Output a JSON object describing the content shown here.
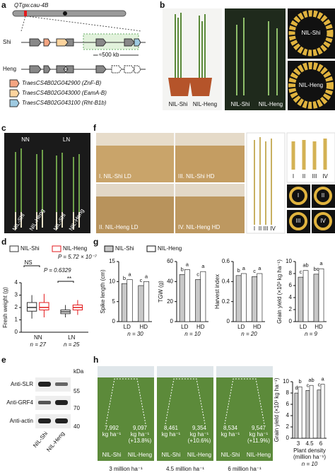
{
  "panel_labels": [
    "a",
    "b",
    "c",
    "d",
    "e",
    "f",
    "g",
    "h"
  ],
  "panels": {
    "a": {
      "locus": "QTgw.cau-4B",
      "rows": [
        "Shi",
        "Heng"
      ],
      "distance": "≈500 kb",
      "genes": [
        "TraesCS4B02G042900 (ZnF-B)",
        "TraesCS4B02G043000 (EamA-B)",
        "TraesCS4B02G043100 (Rht-B1b)"
      ]
    },
    "b": {
      "plant_labels": [
        "NIL-Shi",
        "NIL-Heng"
      ],
      "spike_labels": [
        "NIL-Shi",
        "NIL-Heng"
      ],
      "grain_labels": [
        "NIL-Shi",
        "NIL-Heng"
      ]
    },
    "c": {
      "conditions": [
        "NN",
        "LN"
      ],
      "plant_labels": [
        "NIL-Shi",
        "NIL-Heng",
        "NIL-Shi",
        "NIL-Heng"
      ]
    },
    "f": {
      "plots": [
        "I. NIL-Shi LD",
        "III. NIL-Shi HD",
        "II. NIL-Heng LD",
        "IV. NIL-Heng HD"
      ],
      "numerals": [
        "I",
        "II",
        "III",
        "IV"
      ]
    },
    "e": {
      "unit": "kDa",
      "markers": [
        55,
        70,
        40
      ],
      "antibodies": [
        "Anti-SLR",
        "Anti-GRF4",
        "Anti-actin"
      ],
      "lanes": [
        "NIL-Shi",
        "NIL-Heng"
      ]
    },
    "h": {
      "photos": [
        {
          "density": "3 million ha⁻¹",
          "shi": [
            "7,992",
            "kg ha⁻¹"
          ],
          "heng": [
            "9,097",
            "kg ha⁻¹",
            "(+13.8%)"
          ]
        },
        {
          "density": "4.5 million ha⁻¹",
          "shi": [
            "8,461",
            "kg ha⁻¹"
          ],
          "heng": [
            "9,354",
            "kg ha⁻¹",
            "(+10.6%)"
          ]
        },
        {
          "density": "6 million ha⁻¹",
          "shi": [
            "8,534",
            "kg ha⁻¹"
          ],
          "heng": [
            "9,547",
            "kg ha⁻¹",
            "(+11.9%)"
          ]
        }
      ],
      "lane_labels": [
        "NIL-Shi",
        "NIL-Heng"
      ]
    }
  },
  "chart_data": [
    {
      "type": "box",
      "ylabel": "Fresh weight (g)",
      "categories": [
        "NN",
        "LN"
      ],
      "n_labels": [
        "n = 27",
        "n = 25"
      ],
      "ylim": [
        0,
        4
      ],
      "yticks": [
        0,
        1,
        2,
        3,
        4
      ],
      "annotations": [
        "NS",
        "P = 0.6329",
        "P = 5.72 × 10⁻⁷",
        "**"
      ],
      "series": [
        {
          "name": "NIL-Shi",
          "color": "#333333",
          "values": [
            {
              "min": 1.1,
              "q1": 1.7,
              "median": 2.0,
              "q3": 2.4,
              "max": 3.0
            },
            {
              "min": 1.2,
              "q1": 1.5,
              "median": 1.65,
              "q3": 1.8,
              "max": 2.2
            }
          ]
        },
        {
          "name": "NIL-Heng",
          "color": "#e31a1c",
          "values": [
            {
              "min": 1.2,
              "q1": 1.8,
              "median": 2.0,
              "q3": 2.4,
              "max": 3.1
            },
            {
              "min": 1.4,
              "q1": 1.8,
              "median": 2.0,
              "q3": 2.2,
              "max": 2.6
            }
          ]
        }
      ]
    },
    {
      "type": "bar",
      "ylabel": "Spike length (cm)",
      "categories": [
        "LD",
        "HD"
      ],
      "n_label": "n = 30",
      "ylim": [
        0,
        15
      ],
      "yticks": [
        0,
        5,
        10,
        15
      ],
      "series": [
        {
          "name": "NIL-Shi",
          "color": "#c8c8c8",
          "values": [
            9.5,
            9
          ],
          "letters": [
            "b",
            "c"
          ]
        },
        {
          "name": "NIL-Heng",
          "color": "#ffffff",
          "values": [
            10.5,
            10
          ],
          "letters": [
            "a",
            "a"
          ]
        }
      ]
    },
    {
      "type": "bar",
      "ylabel": "TGW (g)",
      "categories": [
        "LD",
        "HD"
      ],
      "n_label": "n = 10",
      "ylim": [
        0,
        60
      ],
      "yticks": [
        0,
        20,
        40,
        60
      ],
      "series": [
        {
          "color": "#c8c8c8",
          "values": [
            47,
            42
          ],
          "letters": [
            "b",
            "c"
          ]
        },
        {
          "color": "#ffffff",
          "values": [
            52,
            50
          ],
          "letters": [
            "a",
            "a"
          ]
        }
      ]
    },
    {
      "type": "bar",
      "ylabel": "Harvest index",
      "categories": [
        "LD",
        "HD"
      ],
      "n_label": "n = 20",
      "ylim": [
        0,
        0.6
      ],
      "yticks": [
        0,
        0.2,
        0.4,
        0.6
      ],
      "series": [
        {
          "color": "#c8c8c8",
          "values": [
            0.46,
            0.45
          ],
          "letters": [
            "b",
            "c"
          ]
        },
        {
          "color": "#ffffff",
          "values": [
            0.48,
            0.48
          ],
          "letters": [
            "a",
            "a"
          ]
        }
      ]
    },
    {
      "type": "bar",
      "ylabel": "Grain yield (×10³ kg ha⁻¹)",
      "categories": [
        "LD",
        "HD"
      ],
      "n_label": "n = 9",
      "ylim": [
        0,
        10
      ],
      "yticks": [
        0,
        2,
        4,
        6,
        8,
        10
      ],
      "series": [
        {
          "color": "#c8c8c8",
          "values": [
            7.4,
            7.9
          ],
          "letters": [
            "c",
            "bc"
          ]
        },
        {
          "color": "#ffffff",
          "values": [
            8.5,
            8.8
          ],
          "letters": [
            "ab",
            "a"
          ]
        }
      ]
    },
    {
      "type": "bar",
      "ylabel": "Grain yield (×10³ kg ha⁻¹)",
      "xlabel": [
        "Plant density",
        "(million ha⁻¹)"
      ],
      "categories": [
        "3",
        "4.5",
        "6"
      ],
      "n_label": "n = 10",
      "ylim": [
        0,
        10
      ],
      "yticks": [
        0,
        2,
        4,
        6,
        8,
        10
      ],
      "series": [
        {
          "color": "#c8c8c8",
          "values": [
            7.992,
            8.461,
            8.534
          ],
          "letters": [
            "d",
            "c",
            "c"
          ]
        },
        {
          "color": "#ffffff",
          "values": [
            9.097,
            9.354,
            9.547
          ],
          "letters": [
            "b",
            "ab",
            "a"
          ]
        }
      ]
    }
  ]
}
